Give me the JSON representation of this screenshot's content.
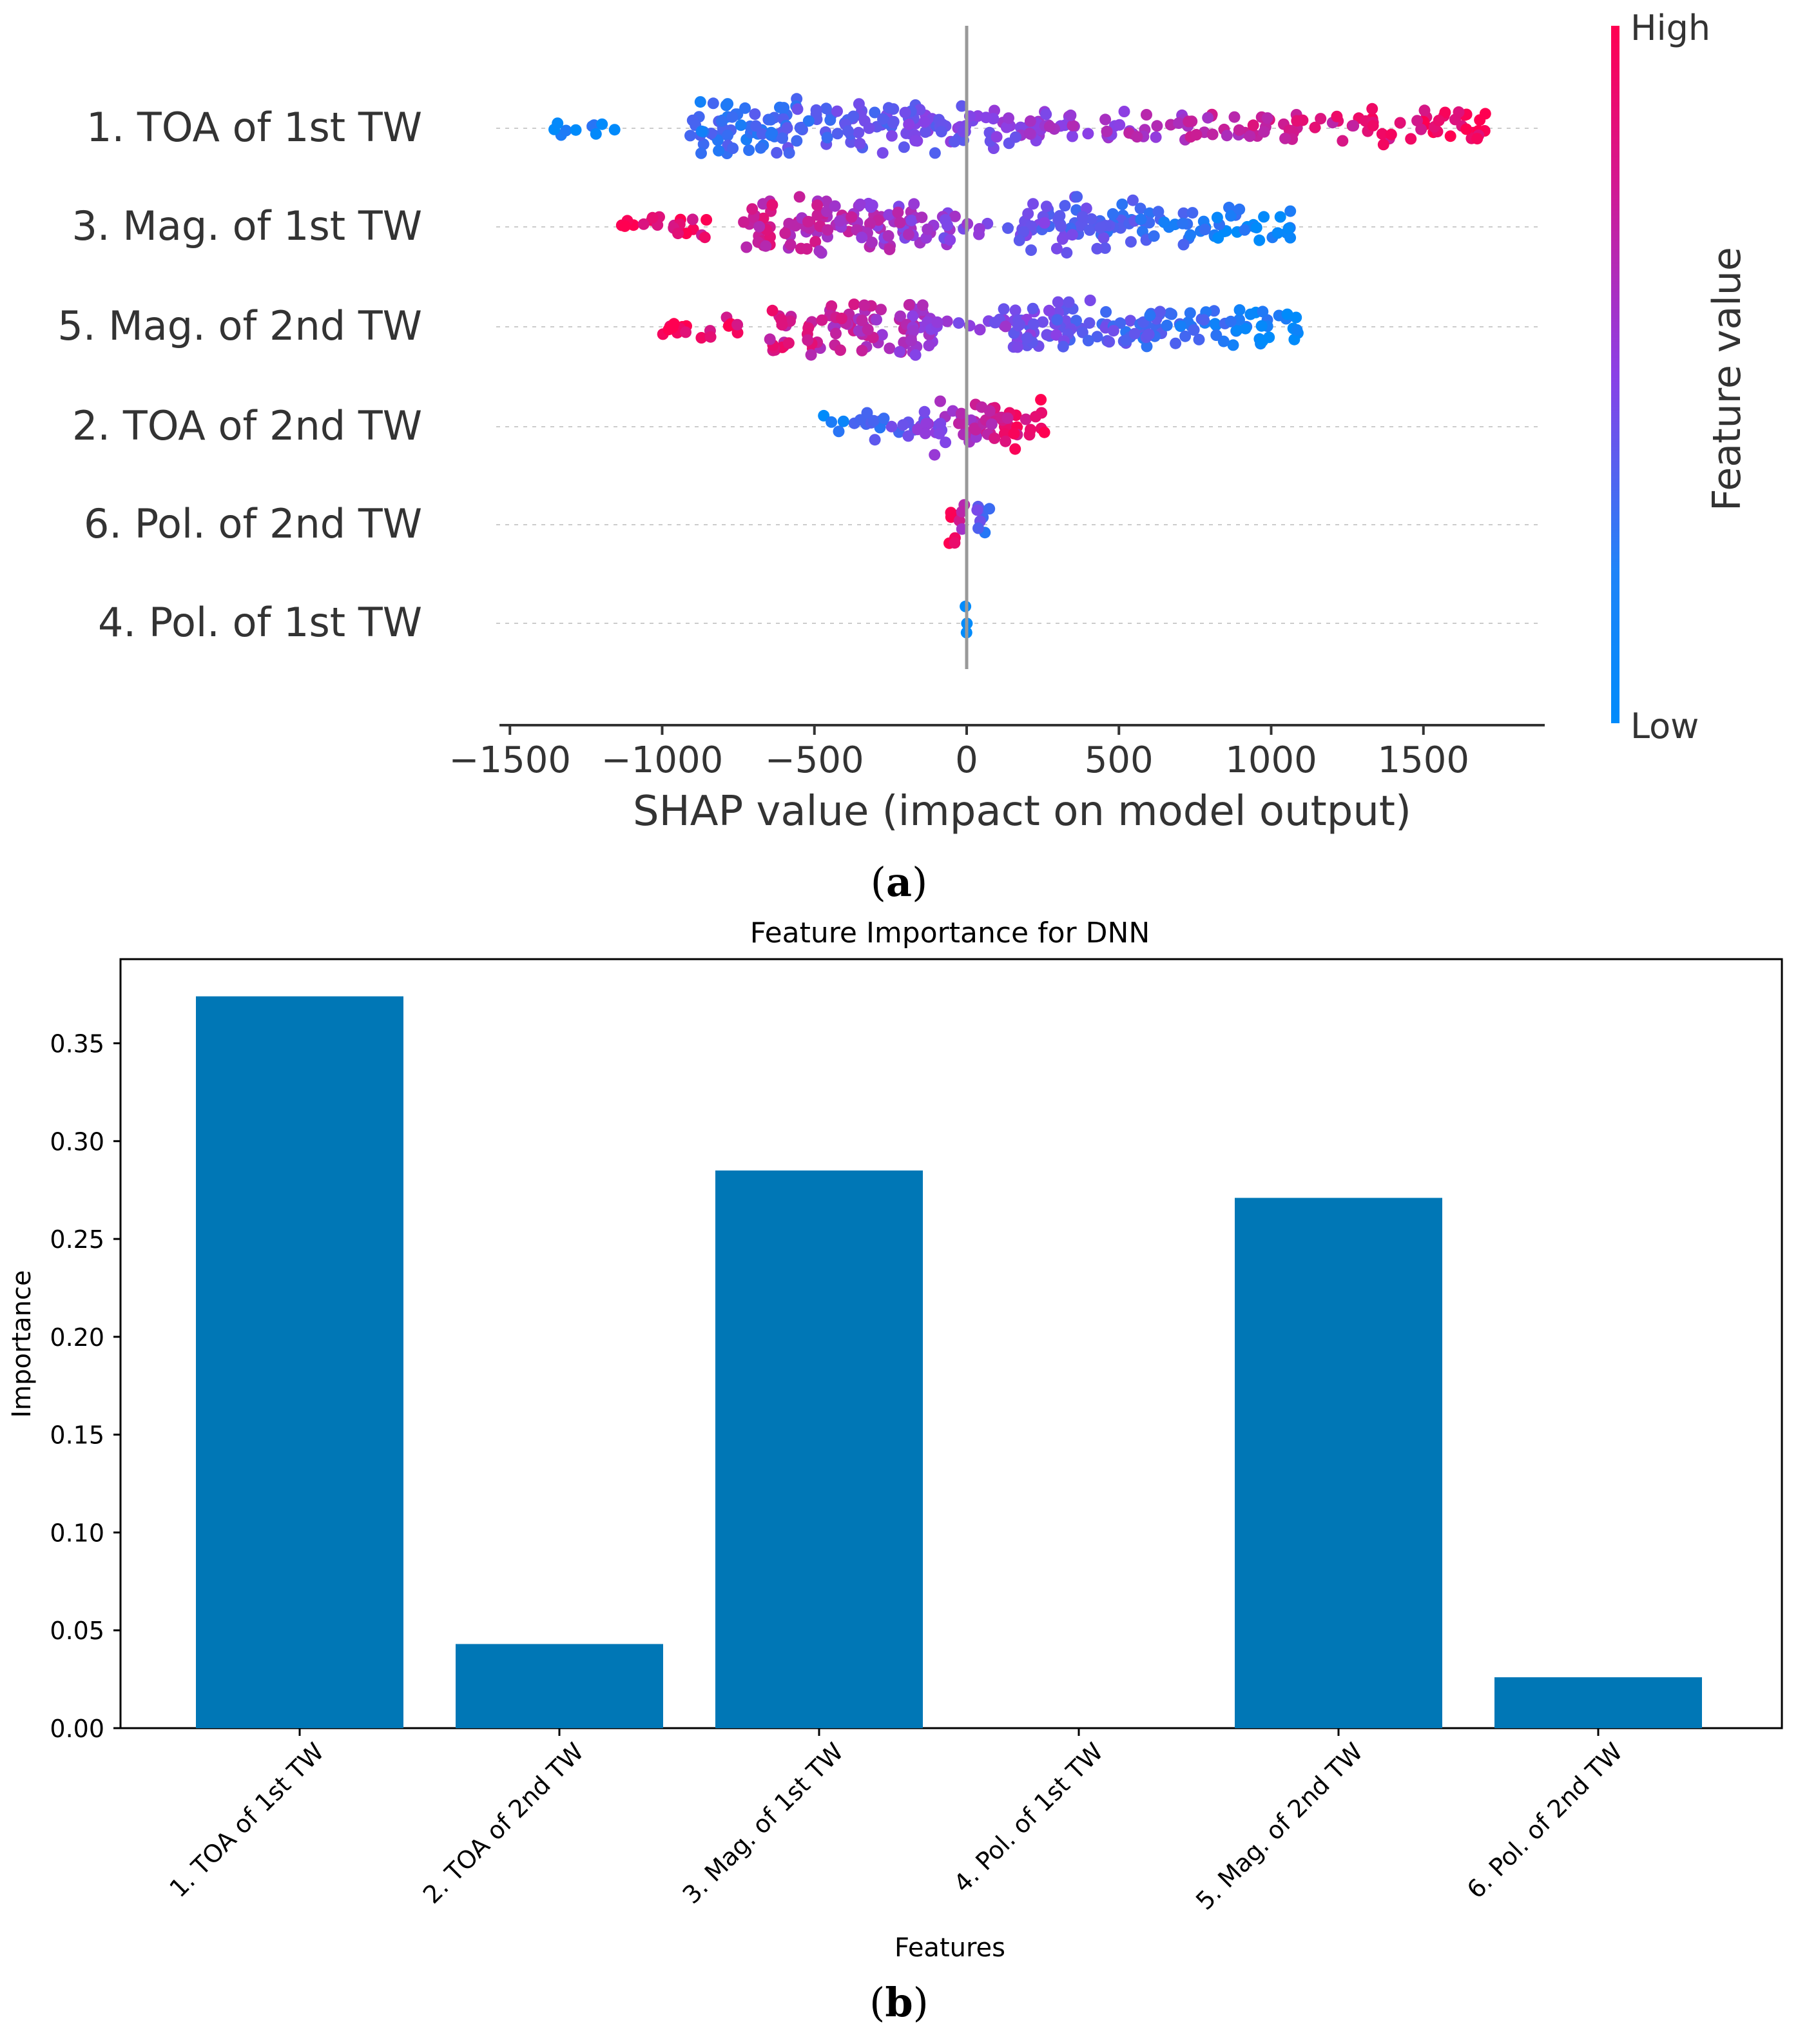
{
  "chart_data": [
    {
      "type": "scatter",
      "subtype": "shap-beeswarm",
      "panel_label": "a",
      "xlabel": "SHAP value (impact on model output)",
      "xlim": [
        -1500,
        1900
      ],
      "xticks": [
        -1500,
        -1000,
        -500,
        0,
        500,
        1000,
        1500
      ],
      "xtick_labels": [
        "−1500",
        "−1000",
        "−500",
        "0",
        "500",
        "1000",
        "1500"
      ],
      "features": [
        {
          "name": "1. TOA of 1st TW",
          "min": -1380,
          "max": 1720,
          "direction": "positive",
          "density": [
            [
              -1380,
              -1150,
              0.25
            ],
            [
              -920,
              -450,
              1.0
            ],
            [
              -450,
              -100,
              0.85
            ],
            [
              -100,
              250,
              0.7
            ],
            [
              250,
              750,
              0.45
            ],
            [
              750,
              1250,
              0.4
            ],
            [
              1250,
              1720,
              0.5
            ]
          ]
        },
        {
          "name": "3. Mag. of 1st TW",
          "min": -1150,
          "max": 1070,
          "direction": "negative",
          "density": [
            [
              -1150,
              -850,
              0.4
            ],
            [
              -750,
              -150,
              1.0
            ],
            [
              -150,
              0,
              0.6
            ],
            [
              0,
              150,
              0.2
            ],
            [
              150,
              550,
              0.9
            ],
            [
              550,
              900,
              0.6
            ],
            [
              900,
              1070,
              0.5
            ]
          ]
        },
        {
          "name": "5. Mag. of 2nd TW",
          "min": -1000,
          "max": 1110,
          "direction": "negative",
          "density": [
            [
              -1000,
              -700,
              0.35
            ],
            [
              -650,
              -100,
              1.0
            ],
            [
              -100,
              80,
              0.2
            ],
            [
              80,
              550,
              0.85
            ],
            [
              550,
              1110,
              0.65
            ]
          ]
        },
        {
          "name": "2. TOA of 2nd TW",
          "min": -470,
          "max": 260,
          "direction": "positive",
          "density": [
            [
              -470,
              -150,
              0.4
            ],
            [
              -150,
              50,
              1.0
            ],
            [
              50,
              260,
              0.85
            ]
          ]
        },
        {
          "name": "6. Pol. of 2nd TW",
          "min": -60,
          "max": 90,
          "direction": "negative",
          "density": [
            [
              -60,
              -5,
              1.0
            ],
            [
              30,
              90,
              0.7
            ]
          ]
        },
        {
          "name": "4. Pol. of 1st TW",
          "min": -5,
          "max": 5,
          "direction": "none",
          "density": [
            [
              -5,
              5,
              1.0
            ]
          ]
        }
      ],
      "colorbar": {
        "label": "Feature value",
        "high": "High",
        "low": "Low"
      },
      "colors": {
        "low": "#008bfb",
        "high": "#ff0051",
        "mid": "#8a40e6"
      }
    },
    {
      "type": "bar",
      "panel_label": "b",
      "title": "Feature Importance for DNN",
      "xlabel": "Features",
      "ylabel": "Importance",
      "categories": [
        "1. TOA of 1st TW",
        "2. TOA of 2nd TW",
        "3. Mag. of 1st TW",
        "4. Pol. of 1st TW",
        "5. Mag. of 2nd TW",
        "6. Pol. of 2nd TW"
      ],
      "values": [
        0.374,
        0.043,
        0.285,
        0.0,
        0.271,
        0.026
      ],
      "ylim": [
        0,
        0.393
      ],
      "yticks": [
        0.0,
        0.05,
        0.1,
        0.15,
        0.2,
        0.25,
        0.3,
        0.35
      ],
      "ytick_labels": [
        "0.00",
        "0.05",
        "0.10",
        "0.15",
        "0.20",
        "0.25",
        "0.30",
        "0.35"
      ],
      "bar_color": "#0077b6"
    }
  ]
}
